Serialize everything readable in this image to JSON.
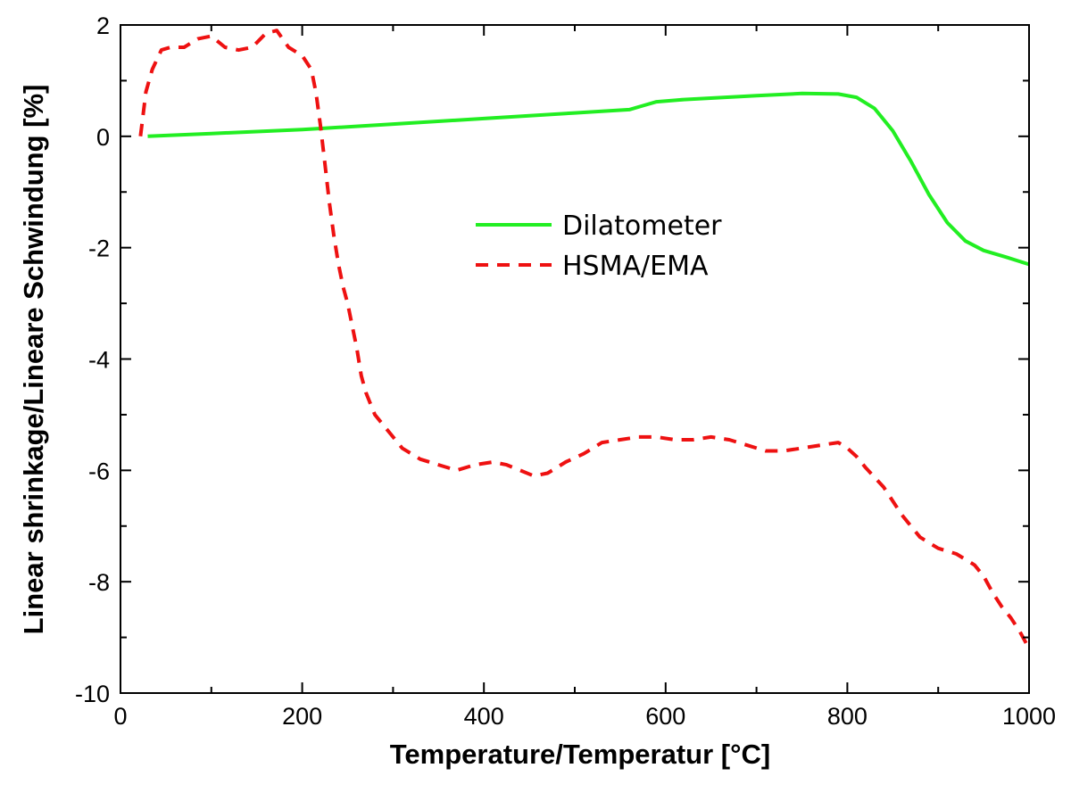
{
  "chart_data": {
    "type": "line",
    "xlabel": "Temperature/Temperatur [°C]",
    "ylabel": "Linear shrinkage/Lineare Schwindung [%]",
    "xlim": [
      0,
      1000
    ],
    "ylim": [
      -10,
      2
    ],
    "xticks": [
      0,
      200,
      400,
      600,
      800,
      1000
    ],
    "yticks": [
      -10,
      -8,
      -6,
      -4,
      -2,
      0,
      2
    ],
    "grid": false,
    "legend_position": "center-right",
    "series": [
      {
        "name": "Dilatometer",
        "color": "#22ee22",
        "line_style": "solid",
        "x": [
          30,
          100,
          200,
          300,
          400,
          500,
          560,
          575,
          590,
          620,
          700,
          750,
          790,
          810,
          830,
          850,
          870,
          890,
          910,
          930,
          950,
          975,
          1000
        ],
        "y": [
          0.0,
          0.05,
          0.12,
          0.22,
          0.32,
          0.42,
          0.48,
          0.55,
          0.62,
          0.66,
          0.73,
          0.77,
          0.76,
          0.7,
          0.5,
          0.1,
          -0.45,
          -1.05,
          -1.55,
          -1.88,
          -2.05,
          -2.17,
          -2.3
        ]
      },
      {
        "name": "HSMA/EMA",
        "color": "#ee1111",
        "line_style": "dashed",
        "x": [
          22,
          28,
          35,
          45,
          55,
          70,
          85,
          100,
          115,
          130,
          145,
          160,
          172,
          185,
          200,
          210,
          215,
          220,
          225,
          230,
          235,
          240,
          245,
          250,
          255,
          260,
          265,
          270,
          280,
          295,
          310,
          330,
          350,
          370,
          390,
          410,
          425,
          440,
          455,
          470,
          490,
          510,
          530,
          550,
          570,
          590,
          610,
          630,
          650,
          670,
          690,
          710,
          730,
          750,
          770,
          790,
          800,
          810,
          820,
          840,
          860,
          880,
          900,
          920,
          940,
          950,
          960,
          970,
          980,
          990,
          1000
        ],
        "y": [
          0.0,
          0.8,
          1.2,
          1.55,
          1.6,
          1.6,
          1.75,
          1.8,
          1.6,
          1.55,
          1.6,
          1.85,
          1.9,
          1.6,
          1.45,
          1.2,
          0.8,
          0.2,
          -0.5,
          -1.2,
          -1.8,
          -2.3,
          -2.7,
          -3.0,
          -3.4,
          -3.8,
          -4.3,
          -4.6,
          -5.0,
          -5.3,
          -5.6,
          -5.8,
          -5.9,
          -6.0,
          -5.9,
          -5.85,
          -5.9,
          -6.0,
          -6.1,
          -6.05,
          -5.85,
          -5.7,
          -5.5,
          -5.45,
          -5.4,
          -5.4,
          -5.45,
          -5.45,
          -5.4,
          -5.45,
          -5.55,
          -5.65,
          -5.65,
          -5.6,
          -5.55,
          -5.5,
          -5.6,
          -5.75,
          -5.95,
          -6.3,
          -6.8,
          -7.2,
          -7.4,
          -7.5,
          -7.7,
          -7.9,
          -8.2,
          -8.45,
          -8.65,
          -8.9,
          -9.2
        ]
      }
    ]
  }
}
